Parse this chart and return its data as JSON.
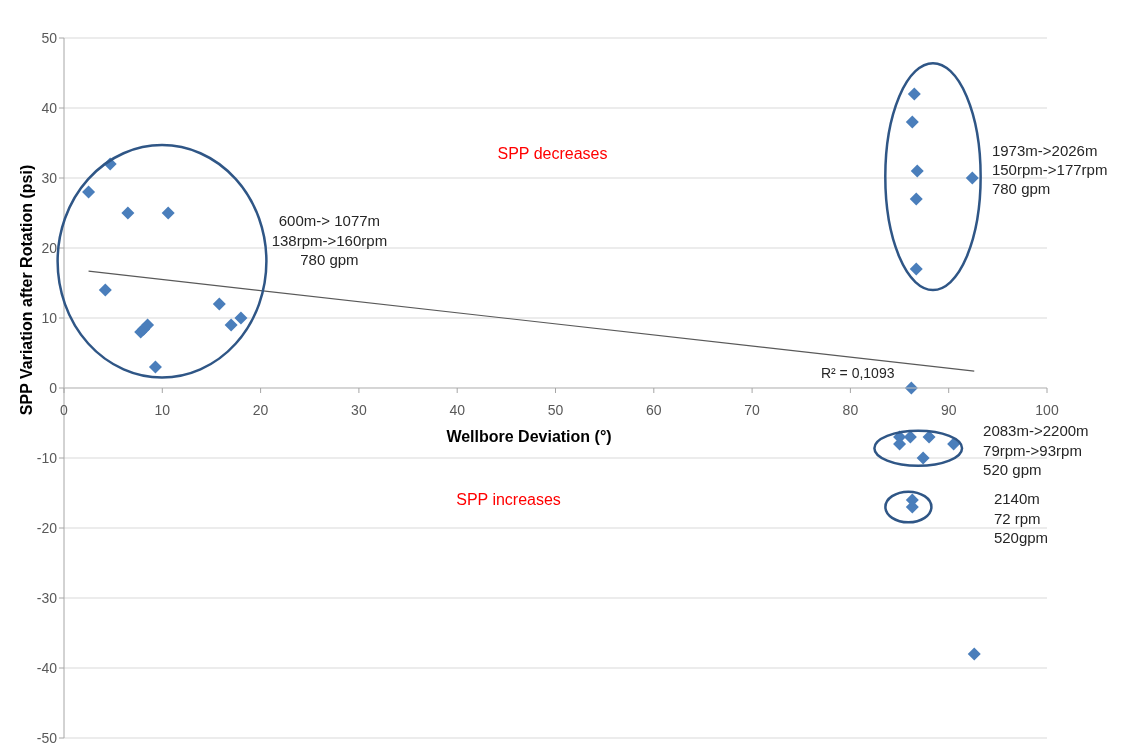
{
  "chart_data": {
    "type": "scatter",
    "xlabel": "Wellbore Deviation (°)",
    "ylabel": "SPP Variation after Rotation (psi)",
    "xlim": [
      0,
      100
    ],
    "xticks": [
      0,
      10,
      20,
      30,
      40,
      50,
      60,
      70,
      80,
      90,
      100
    ],
    "ylim": [
      -50,
      50
    ],
    "yticks": [
      -50,
      -40,
      -30,
      -20,
      -10,
      0,
      10,
      20,
      30,
      40,
      50
    ],
    "grid": "y",
    "marker": "diamond",
    "series": [
      {
        "type": "scatter",
        "color": "#4a7ebb",
        "x": [
          2.5,
          4.7,
          6.5,
          10.6,
          4.2,
          7.8,
          8.1,
          8.5,
          9.3,
          15.8,
          17.0,
          18.0,
          86.5,
          86.3,
          86.8,
          92.4,
          86.7,
          86.7,
          86.2,
          85.0,
          85.0,
          86.1,
          88.0,
          90.5,
          87.4,
          86.3,
          86.3,
          92.6
        ],
        "values": [
          28,
          32,
          25,
          25,
          14,
          8,
          8.4,
          9,
          3,
          12,
          9,
          10,
          42,
          38,
          31,
          30,
          27,
          17,
          0,
          -7,
          -8,
          -7,
          -7,
          -8,
          -10,
          -16,
          -17,
          -38
        ]
      },
      {
        "type": "line",
        "color": "#595959",
        "marker": "none",
        "x": [
          2.5,
          92.6
        ],
        "values": [
          16.7,
          2.4
        ]
      }
    ],
    "annotations": [
      "SPP decreases",
      "SPP increases",
      "600m-> 1077m\n138rpm->160rpm\n780 gpm",
      "1973m->2026m\n150rpm->177rpm\n780 gpm",
      "2083m->2200m\n79rpm->93rpm\n520 gpm",
      "2140m\n72 rpm\n520gpm",
      "R² = 0,1093"
    ]
  }
}
